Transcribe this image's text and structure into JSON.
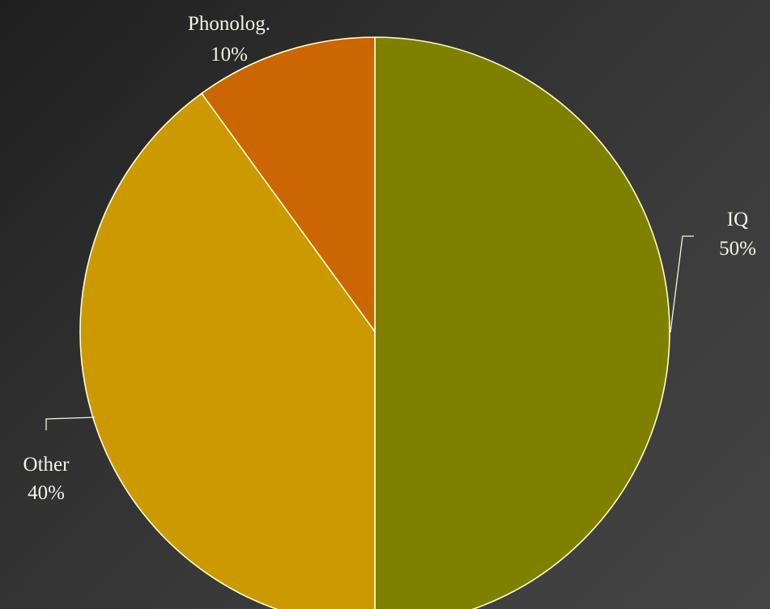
{
  "chart_data": {
    "type": "pie",
    "title": "",
    "start_angle_deg": 0,
    "direction": "clockwise",
    "slices": [
      {
        "name": "IQ",
        "value": 50,
        "label": "50%",
        "color": "#808000"
      },
      {
        "name": "Other",
        "value": 40,
        "label": "40%",
        "color": "#cc9900"
      },
      {
        "name": "Phonolog.",
        "value": 10,
        "label": "10%",
        "color": "#cc6600"
      }
    ],
    "slice_border_color": "#ffffcc",
    "legend": "none"
  }
}
